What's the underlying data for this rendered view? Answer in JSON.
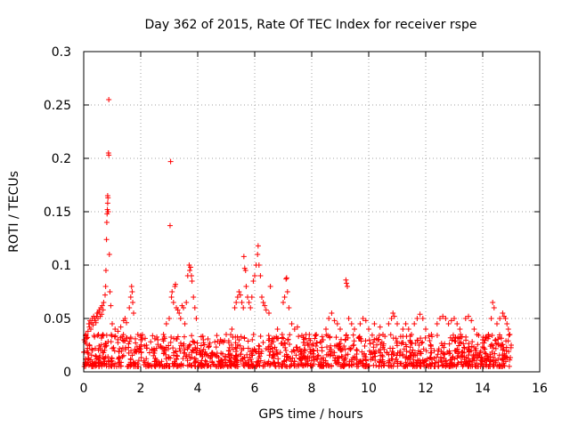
{
  "chart_data": {
    "type": "scatter",
    "title": "Day 362 of 2015, Rate Of TEC Index for receiver rspe",
    "xlabel": "GPS time / hours",
    "ylabel": "ROTI / TECUs",
    "xlim": [
      0,
      16
    ],
    "ylim": [
      0,
      0.3
    ],
    "xticks": [
      0,
      2,
      4,
      6,
      8,
      10,
      12,
      14,
      16
    ],
    "xtick_labels": [
      "0",
      "2",
      "4",
      "6",
      "8",
      "10",
      "12",
      "14",
      "16"
    ],
    "yticks": [
      0,
      0.05,
      0.1,
      0.15,
      0.2,
      0.25,
      0.3
    ],
    "ytick_labels": [
      "0",
      "0.05",
      "0.1",
      "0.15",
      "0.2",
      "0.25",
      "0.3"
    ],
    "grid": true,
    "marker": "+",
    "color": "#ff0000",
    "series": [
      {
        "name": "ROTI",
        "points": [
          [
            0.02,
            0.03
          ],
          [
            0.05,
            0.028
          ],
          [
            0.08,
            0.035
          ],
          [
            0.1,
            0.032
          ],
          [
            0.12,
            0.02
          ],
          [
            0.15,
            0.038
          ],
          [
            0.18,
            0.045
          ],
          [
            0.2,
            0.042
          ],
          [
            0.22,
            0.048
          ],
          [
            0.25,
            0.04
          ],
          [
            0.28,
            0.046
          ],
          [
            0.3,
            0.05
          ],
          [
            0.33,
            0.044
          ],
          [
            0.35,
            0.052
          ],
          [
            0.38,
            0.048
          ],
          [
            0.4,
            0.05
          ],
          [
            0.43,
            0.046
          ],
          [
            0.45,
            0.052
          ],
          [
            0.48,
            0.055
          ],
          [
            0.5,
            0.05
          ],
          [
            0.53,
            0.056
          ],
          [
            0.55,
            0.058
          ],
          [
            0.58,
            0.052
          ],
          [
            0.6,
            0.06
          ],
          [
            0.63,
            0.054
          ],
          [
            0.65,
            0.062
          ],
          [
            0.68,
            0.058
          ],
          [
            0.7,
            0.065
          ],
          [
            0.75,
            0.072
          ],
          [
            0.77,
            0.08
          ],
          [
            0.78,
            0.095
          ],
          [
            0.8,
            0.124
          ],
          [
            0.81,
            0.14
          ],
          [
            0.82,
            0.148
          ],
          [
            0.83,
            0.152
          ],
          [
            0.84,
            0.158
          ],
          [
            0.84,
            0.165
          ],
          [
            0.85,
            0.163
          ],
          [
            0.86,
            0.15
          ],
          [
            0.87,
            0.205
          ],
          [
            0.88,
            0.203
          ],
          [
            0.88,
            0.255
          ],
          [
            0.9,
            0.11
          ],
          [
            0.92,
            0.075
          ],
          [
            0.95,
            0.062
          ],
          [
            1.0,
            0.045
          ],
          [
            1.1,
            0.04
          ],
          [
            1.2,
            0.038
          ],
          [
            1.3,
            0.042
          ],
          [
            1.4,
            0.048
          ],
          [
            1.45,
            0.05
          ],
          [
            1.5,
            0.046
          ],
          [
            1.6,
            0.06
          ],
          [
            1.65,
            0.07
          ],
          [
            1.68,
            0.08
          ],
          [
            1.7,
            0.075
          ],
          [
            1.72,
            0.065
          ],
          [
            1.75,
            0.055
          ],
          [
            1.9,
            0.035
          ],
          [
            2.0,
            0.03
          ],
          [
            2.2,
            0.025
          ],
          [
            2.4,
            0.02
          ],
          [
            2.6,
            0.03
          ],
          [
            2.8,
            0.035
          ],
          [
            2.9,
            0.045
          ],
          [
            3.0,
            0.05
          ],
          [
            3.03,
            0.137
          ],
          [
            3.05,
            0.197
          ],
          [
            3.08,
            0.07
          ],
          [
            3.1,
            0.075
          ],
          [
            3.15,
            0.065
          ],
          [
            3.2,
            0.08
          ],
          [
            3.22,
            0.082
          ],
          [
            3.25,
            0.06
          ],
          [
            3.3,
            0.058
          ],
          [
            3.35,
            0.055
          ],
          [
            3.4,
            0.05
          ],
          [
            3.45,
            0.062
          ],
          [
            3.5,
            0.06
          ],
          [
            3.55,
            0.045
          ],
          [
            3.6,
            0.065
          ],
          [
            3.65,
            0.09
          ],
          [
            3.7,
            0.1
          ],
          [
            3.72,
            0.095
          ],
          [
            3.75,
            0.098
          ],
          [
            3.78,
            0.09
          ],
          [
            3.8,
            0.085
          ],
          [
            3.85,
            0.07
          ],
          [
            3.9,
            0.06
          ],
          [
            3.95,
            0.05
          ],
          [
            4.2,
            0.03
          ],
          [
            4.4,
            0.025
          ],
          [
            4.6,
            0.028
          ],
          [
            4.8,
            0.03
          ],
          [
            5.0,
            0.035
          ],
          [
            5.2,
            0.04
          ],
          [
            5.3,
            0.06
          ],
          [
            5.35,
            0.065
          ],
          [
            5.4,
            0.07
          ],
          [
            5.45,
            0.075
          ],
          [
            5.5,
            0.072
          ],
          [
            5.55,
            0.065
          ],
          [
            5.6,
            0.06
          ],
          [
            5.62,
            0.108
          ],
          [
            5.65,
            0.097
          ],
          [
            5.68,
            0.095
          ],
          [
            5.7,
            0.08
          ],
          [
            5.75,
            0.07
          ],
          [
            5.8,
            0.065
          ],
          [
            5.85,
            0.06
          ],
          [
            5.9,
            0.07
          ],
          [
            5.95,
            0.085
          ],
          [
            6.0,
            0.09
          ],
          [
            6.05,
            0.1
          ],
          [
            6.1,
            0.11
          ],
          [
            6.12,
            0.118
          ],
          [
            6.15,
            0.1
          ],
          [
            6.2,
            0.09
          ],
          [
            6.25,
            0.07
          ],
          [
            6.3,
            0.065
          ],
          [
            6.35,
            0.062
          ],
          [
            6.4,
            0.058
          ],
          [
            6.5,
            0.055
          ],
          [
            6.55,
            0.08
          ],
          [
            6.8,
            0.04
          ],
          [
            7.0,
            0.065
          ],
          [
            7.05,
            0.07
          ],
          [
            7.1,
            0.087
          ],
          [
            7.12,
            0.088
          ],
          [
            7.15,
            0.075
          ],
          [
            7.2,
            0.06
          ],
          [
            7.3,
            0.045
          ],
          [
            7.4,
            0.04
          ],
          [
            7.5,
            0.042
          ],
          [
            7.8,
            0.035
          ],
          [
            8.0,
            0.025
          ],
          [
            8.2,
            0.02
          ],
          [
            8.4,
            0.03
          ],
          [
            8.5,
            0.04
          ],
          [
            8.6,
            0.05
          ],
          [
            8.7,
            0.055
          ],
          [
            8.8,
            0.048
          ],
          [
            8.9,
            0.045
          ],
          [
            9.0,
            0.04
          ],
          [
            9.2,
            0.086
          ],
          [
            9.22,
            0.083
          ],
          [
            9.25,
            0.08
          ],
          [
            9.3,
            0.05
          ],
          [
            9.4,
            0.045
          ],
          [
            9.5,
            0.04
          ],
          [
            9.7,
            0.045
          ],
          [
            9.8,
            0.05
          ],
          [
            9.9,
            0.048
          ],
          [
            10.0,
            0.04
          ],
          [
            10.2,
            0.045
          ],
          [
            10.4,
            0.042
          ],
          [
            10.5,
            0.035
          ],
          [
            10.7,
            0.045
          ],
          [
            10.8,
            0.05
          ],
          [
            10.85,
            0.055
          ],
          [
            10.9,
            0.052
          ],
          [
            11.0,
            0.045
          ],
          [
            11.2,
            0.04
          ],
          [
            11.3,
            0.045
          ],
          [
            11.4,
            0.04
          ],
          [
            11.5,
            0.035
          ],
          [
            11.6,
            0.045
          ],
          [
            11.7,
            0.05
          ],
          [
            11.8,
            0.054
          ],
          [
            11.9,
            0.05
          ],
          [
            12.0,
            0.04
          ],
          [
            12.2,
            0.035
          ],
          [
            12.4,
            0.045
          ],
          [
            12.5,
            0.05
          ],
          [
            12.6,
            0.052
          ],
          [
            12.7,
            0.05
          ],
          [
            12.8,
            0.045
          ],
          [
            12.9,
            0.048
          ],
          [
            13.0,
            0.05
          ],
          [
            13.1,
            0.045
          ],
          [
            13.2,
            0.04
          ],
          [
            13.4,
            0.05
          ],
          [
            13.5,
            0.052
          ],
          [
            13.6,
            0.048
          ],
          [
            13.7,
            0.04
          ],
          [
            13.8,
            0.035
          ],
          [
            14.0,
            0.03
          ],
          [
            14.2,
            0.035
          ],
          [
            14.3,
            0.05
          ],
          [
            14.35,
            0.065
          ],
          [
            14.4,
            0.06
          ],
          [
            14.5,
            0.045
          ],
          [
            14.6,
            0.05
          ],
          [
            14.7,
            0.055
          ],
          [
            14.75,
            0.052
          ],
          [
            14.8,
            0.05
          ],
          [
            14.85,
            0.045
          ],
          [
            14.9,
            0.04
          ],
          [
            14.95,
            0.035
          ],
          [
            15.0,
            0.025
          ]
        ]
      }
    ],
    "dense_band": {
      "description": "dense cluster of low ROTI values along the bottom",
      "x_range": [
        0,
        15
      ],
      "y_range": [
        0.005,
        0.035
      ],
      "count": 1400
    }
  }
}
